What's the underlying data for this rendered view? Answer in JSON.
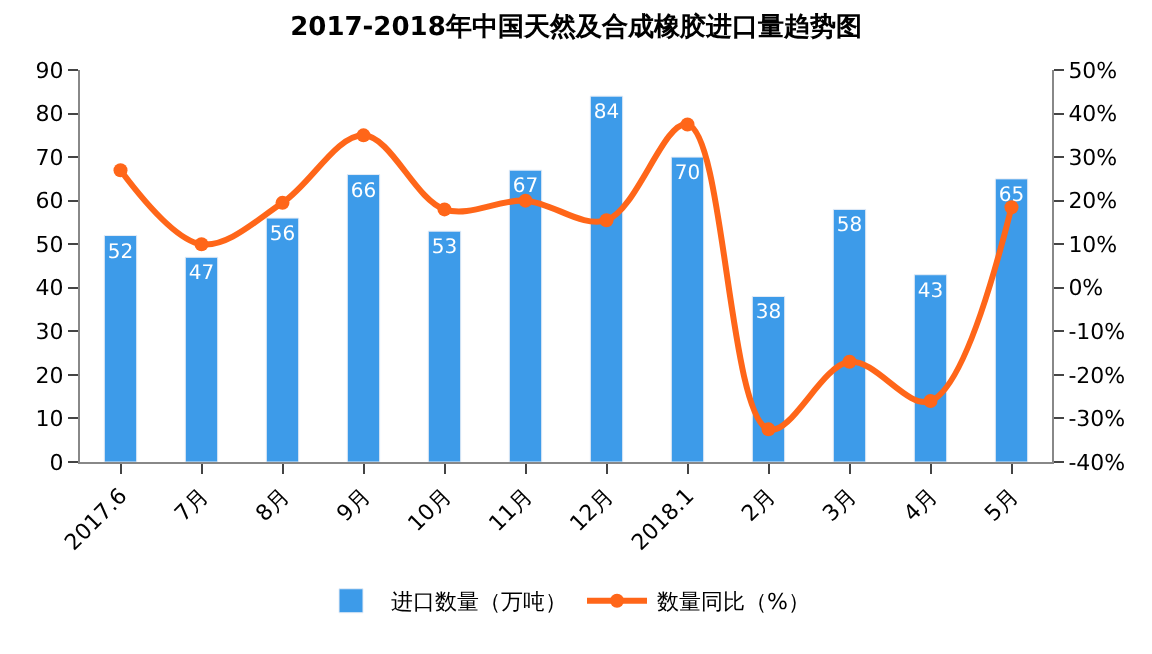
{
  "chart_data": {
    "type": "bar",
    "title": "2017-2018年中国天然及合成橡胶进口量趋势图",
    "categories": [
      "2017.6",
      "7月",
      "8月",
      "9月",
      "10月",
      "11月",
      "12月",
      "2018.1",
      "2月",
      "3月",
      "4月",
      "5月"
    ],
    "series": [
      {
        "name": "进口数量（万吨）",
        "color": "#3d9be9",
        "values": [
          52,
          47,
          56,
          66,
          53,
          67,
          84,
          70,
          38,
          58,
          43,
          65
        ],
        "data_labels": true
      },
      {
        "name": "数量同比（%）",
        "type": "line",
        "axis": "y2",
        "color": "#ff6619",
        "marker": "circle",
        "values": [
          27,
          10,
          19.5,
          35,
          18,
          20,
          15.5,
          37.5,
          -32.5,
          -17,
          -26,
          18.5
        ]
      }
    ],
    "ylim": [
      0,
      90
    ],
    "yticks": [
      0,
      10,
      20,
      30,
      40,
      50,
      60,
      70,
      80,
      90
    ],
    "y2lim": [
      -40,
      50
    ],
    "y2ticks": [
      {
        "value": -40,
        "label": "-40%"
      },
      {
        "value": -30,
        "label": "-30%"
      },
      {
        "value": -20,
        "label": "-20%"
      },
      {
        "value": -10,
        "label": "-10%"
      },
      {
        "value": 0,
        "label": "0%"
      },
      {
        "value": 10,
        "label": "10%"
      },
      {
        "value": 20,
        "label": "20%"
      },
      {
        "value": 30,
        "label": "30%"
      },
      {
        "value": 40,
        "label": "40%"
      },
      {
        "value": 50,
        "label": "50%"
      }
    ],
    "legend": "bottom"
  }
}
